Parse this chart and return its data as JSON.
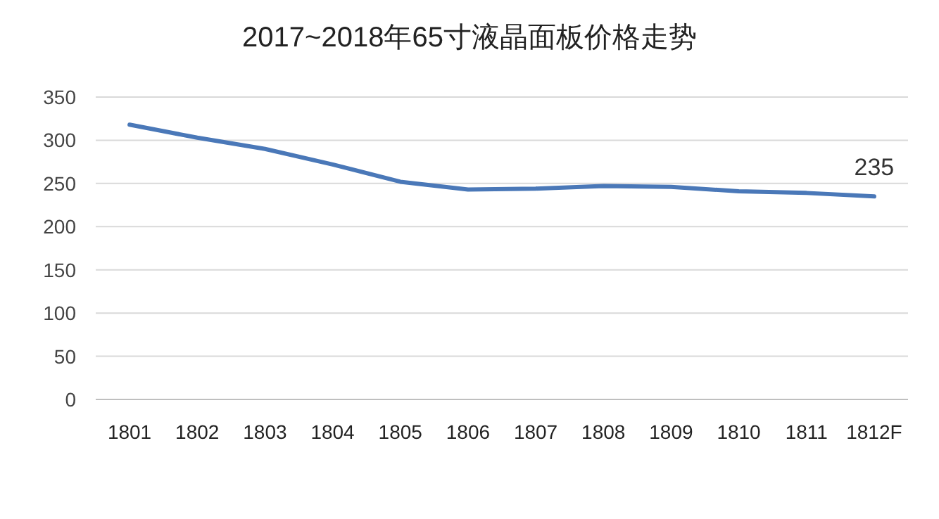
{
  "chart_data": {
    "type": "line",
    "title": "2017~2018年65寸液晶面板价格走势",
    "categories": [
      "1801",
      "1802",
      "1803",
      "1804",
      "1805",
      "1806",
      "1807",
      "1808",
      "1809",
      "1810",
      "1811",
      "1812F"
    ],
    "series": [
      {
        "color": "#4a78b8",
        "values": [
          318,
          303,
          290,
          272,
          252,
          243,
          244,
          247,
          246,
          241,
          239,
          235
        ],
        "value_labels": [
          null,
          null,
          null,
          null,
          null,
          null,
          null,
          null,
          null,
          null,
          null,
          "235"
        ]
      }
    ],
    "ylim": [
      0,
      350
    ],
    "yticks": [
      0,
      50,
      100,
      150,
      200,
      250,
      300,
      350
    ],
    "grid": "y",
    "marker": "none",
    "line_style": "solid"
  }
}
